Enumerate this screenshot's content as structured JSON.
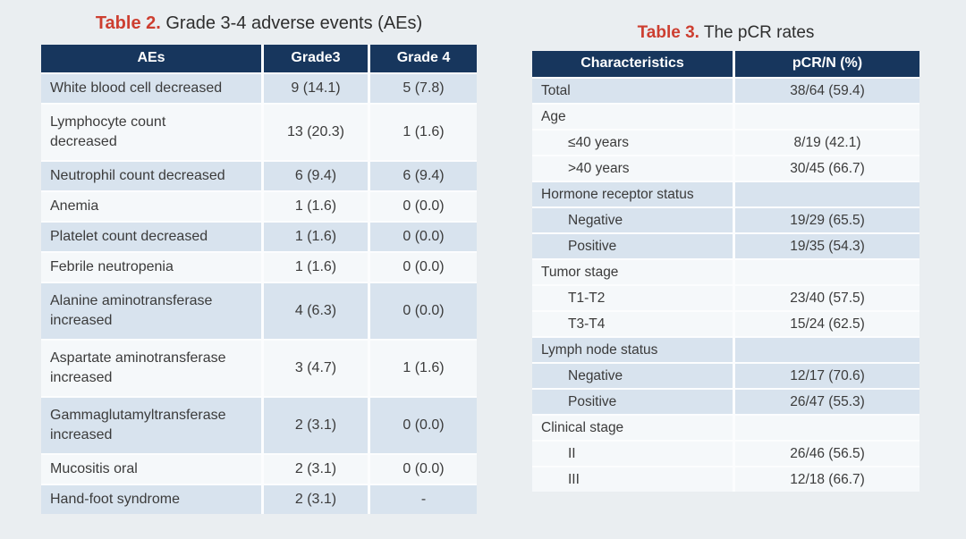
{
  "colors": {
    "page_background": "#eaeef1",
    "header_bg": "#17365d",
    "header_text": "#ffffff",
    "row_shaded": "#d8e3ee",
    "row_light": "#f5f8fa",
    "separator": "#fcfdfe",
    "title_red": "#cd3e30",
    "body_text": "#3b3b3b"
  },
  "table2": {
    "title_label": "Table 2.",
    "title_text": " Grade 3-4 adverse events (AEs)",
    "columns": [
      "AEs",
      "Grade3",
      "Grade 4"
    ],
    "rows": [
      {
        "ae": "White blood cell decreased",
        "grade3": "9 (14.1)",
        "grade4": "5 (7.8)"
      },
      {
        "ae": "Lymphocyte count\ndecreased",
        "grade3": "13 (20.3)",
        "grade4": "1 (1.6)"
      },
      {
        "ae": "Neutrophil count decreased",
        "grade3": "6 (9.4)",
        "grade4": "6 (9.4)"
      },
      {
        "ae": "Anemia",
        "grade3": "1 (1.6)",
        "grade4": "0 (0.0)"
      },
      {
        "ae": "Platelet count decreased",
        "grade3": "1 (1.6)",
        "grade4": "0 (0.0)"
      },
      {
        "ae": "Febrile neutropenia",
        "grade3": "1 (1.6)",
        "grade4": "0 (0.0)"
      },
      {
        "ae": "Alanine aminotransferase\nincreased",
        "grade3": "4 (6.3)",
        "grade4": "0 (0.0)"
      },
      {
        "ae": "Aspartate aminotransferase\nincreased",
        "grade3": "3 (4.7)",
        "grade4": "1 (1.6)"
      },
      {
        "ae": "Gammaglutamyltransferase\nincreased",
        "grade3": "2 (3.1)",
        "grade4": "0 (0.0)"
      },
      {
        "ae": "Mucositis oral",
        "grade3": "2 (3.1)",
        "grade4": "0 (0.0)"
      },
      {
        "ae": "Hand-foot syndrome",
        "grade3": "2 (3.1)",
        "grade4": "-"
      }
    ]
  },
  "table3": {
    "title_label": "Table 3.",
    "title_text": " The pCR rates",
    "columns": [
      "Characteristics",
      "pCR/N (%)"
    ],
    "rows": [
      {
        "label": "Total",
        "value": "38/64 (59.4)",
        "indent": false
      },
      {
        "label": "Age",
        "value": "",
        "indent": false
      },
      {
        "label": "≤40 years",
        "value": "8/19 (42.1)",
        "indent": true
      },
      {
        "label": ">40 years",
        "value": "30/45 (66.7)",
        "indent": true
      },
      {
        "label": "Hormone receptor status",
        "value": "",
        "indent": false
      },
      {
        "label": "Negative",
        "value": "19/29 (65.5)",
        "indent": true
      },
      {
        "label": "Positive",
        "value": "19/35 (54.3)",
        "indent": true
      },
      {
        "label": "Tumor stage",
        "value": "",
        "indent": false
      },
      {
        "label": "T1-T2",
        "value": "23/40 (57.5)",
        "indent": true
      },
      {
        "label": "T3-T4",
        "value": "15/24 (62.5)",
        "indent": true
      },
      {
        "label": "Lymph node status",
        "value": "",
        "indent": false
      },
      {
        "label": "Negative",
        "value": "12/17 (70.6)",
        "indent": true
      },
      {
        "label": "Positive",
        "value": "26/47 (55.3)",
        "indent": true
      },
      {
        "label": "Clinical stage",
        "value": "",
        "indent": false
      },
      {
        "label": "II",
        "value": "26/46 (56.5)",
        "indent": true
      },
      {
        "label": "III",
        "value": "12/18 (66.7)",
        "indent": true
      }
    ]
  }
}
